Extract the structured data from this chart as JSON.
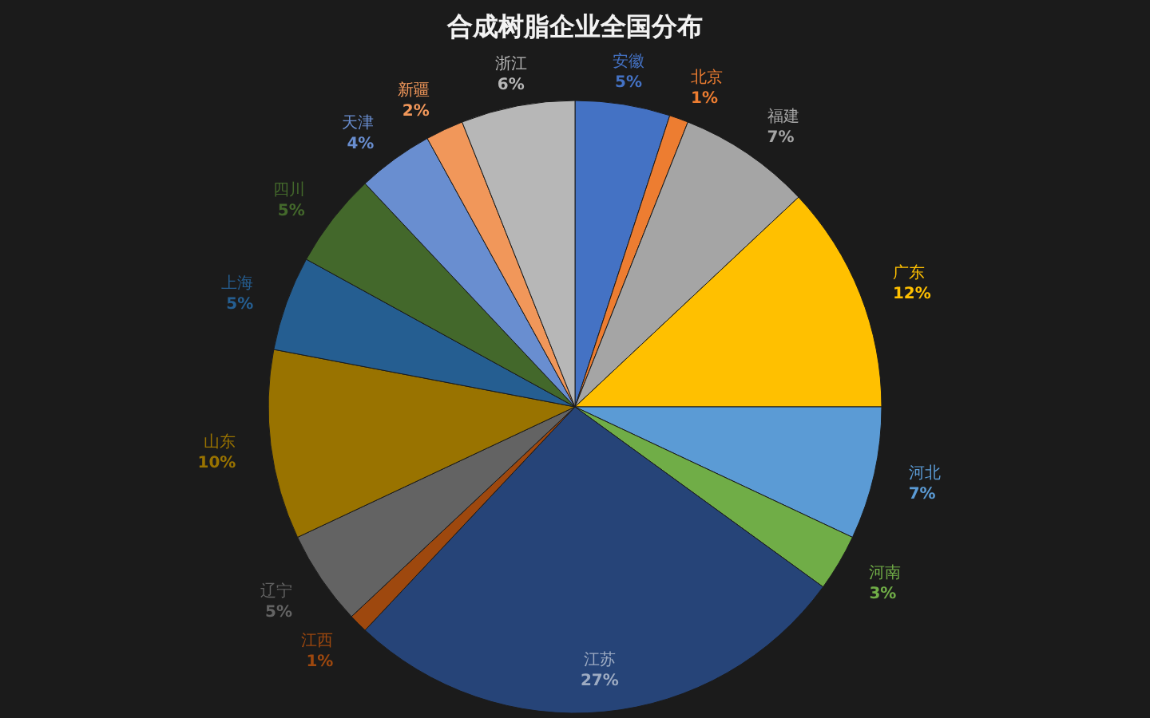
{
  "chart_data": {
    "type": "pie",
    "title": "合成树脂企业全国分布",
    "categories": [
      "安徽",
      "北京",
      "福建",
      "广东",
      "河北",
      "河南",
      "江苏",
      "江西",
      "辽宁",
      "山东",
      "上海",
      "四川",
      "天津",
      "新疆",
      "浙江"
    ],
    "values": [
      5,
      1,
      7,
      12,
      7,
      3,
      27,
      1,
      5,
      10,
      5,
      5,
      4,
      2,
      6
    ],
    "colors": [
      "#4472c4",
      "#ed7d31",
      "#a5a5a5",
      "#ffc000",
      "#5b9bd5",
      "#70ad47",
      "#264478",
      "#9e480e",
      "#636363",
      "#997300",
      "#255e91",
      "#43682b",
      "#698ed0",
      "#f1975a",
      "#b7b7b7"
    ],
    "value_labels": [
      "5%",
      "1%",
      "7%",
      "12%",
      "7%",
      "3%",
      "27%",
      "1%",
      "5%",
      "10%",
      "5%",
      "5%",
      "4%",
      "2%",
      "6%"
    ]
  }
}
